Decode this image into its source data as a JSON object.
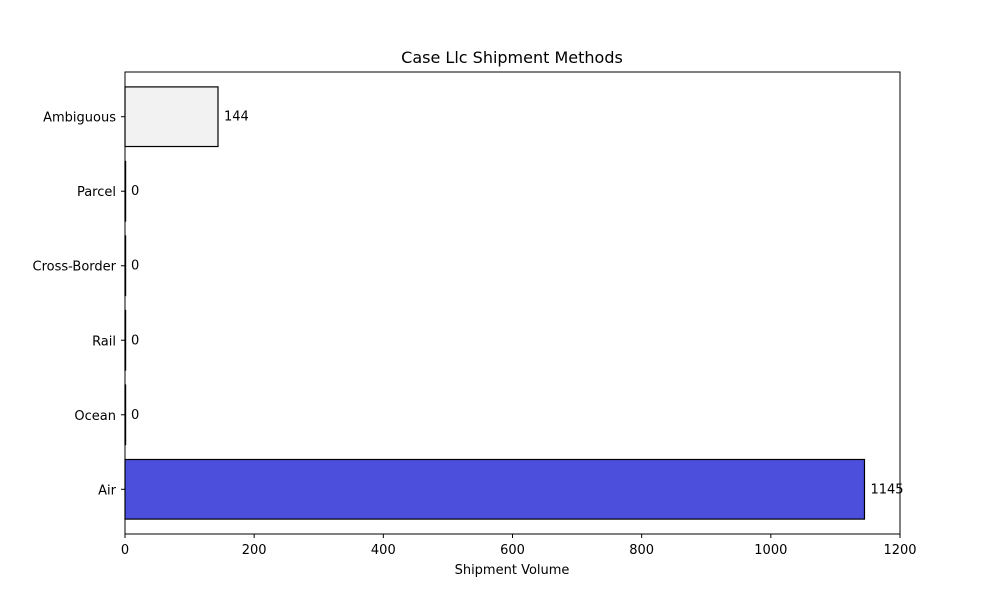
{
  "chart_data": {
    "type": "bar",
    "orientation": "horizontal",
    "title": "Case Llc Shipment Methods",
    "xlabel": "Shipment Volume",
    "ylabel": "",
    "categories": [
      "Air",
      "Ocean",
      "Rail",
      "Cross-Border",
      "Parcel",
      "Ambiguous"
    ],
    "values": [
      1145,
      0,
      0,
      0,
      0,
      144
    ],
    "colors": [
      "#4c4fdc",
      "#ffffff",
      "#ffffff",
      "#ffffff",
      "#ffffff",
      "#f2f2f2"
    ],
    "edge_color": "#000000",
    "xlim": [
      0,
      1200
    ],
    "xticks": [
      0,
      200,
      400,
      600,
      800,
      1000,
      1200
    ],
    "grid": false,
    "legend": "none"
  }
}
